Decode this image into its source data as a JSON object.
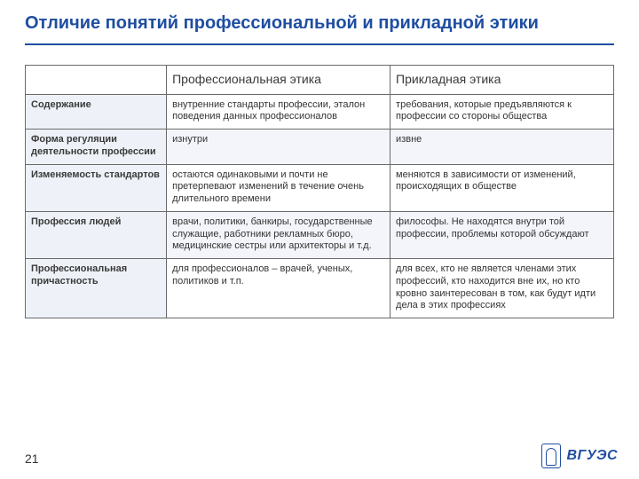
{
  "title": "Отличие понятий профессиональной и прикладной этики",
  "page_number": "21",
  "logo_text": "ВГУЭС",
  "colors": {
    "accent": "#1f4ea1",
    "row_head_bg": "#eef2f8",
    "alt_row_bg": "#f3f5fa",
    "border": "#6a6a6a",
    "text": "#333333",
    "background": "#ffffff"
  },
  "table": {
    "columns": [
      "",
      "Профессиональная этика",
      "Прикладная этика"
    ],
    "rows": [
      {
        "label": "Содержание",
        "c1": "внутренние стандарты профессии, эталон поведения данных профессионалов",
        "c2": "требования, которые предъявляются к профессии со стороны общества"
      },
      {
        "label": "Форма регуляции деятельности профессии",
        "c1": "изнутри",
        "c2": "извне"
      },
      {
        "label": "Изменяемость стандартов",
        "c1": "остаются одинаковыми и почти не претерпевают изменений в течение очень длительного времени",
        "c2": "меняются в зависимости от изменений, происходящих в обществе"
      },
      {
        "label": "Профессия людей",
        "c1": "врачи, политики, банкиры, государственные служащие, работники рекламных бюро, медицинские сестры или архитекторы и т.д.",
        "c2": "философы. Не находятся внутри той профессии, проблемы которой обсуждают"
      },
      {
        "label": "Профессиональная причастность",
        "c1": "для профессионалов – врачей, ученых, политиков и т.п.",
        "c2": "для всех, кто не является членами этих профессий, кто находится вне их, но кто кровно заинтересован в том, как будут идти дела в этих профессиях"
      }
    ]
  }
}
